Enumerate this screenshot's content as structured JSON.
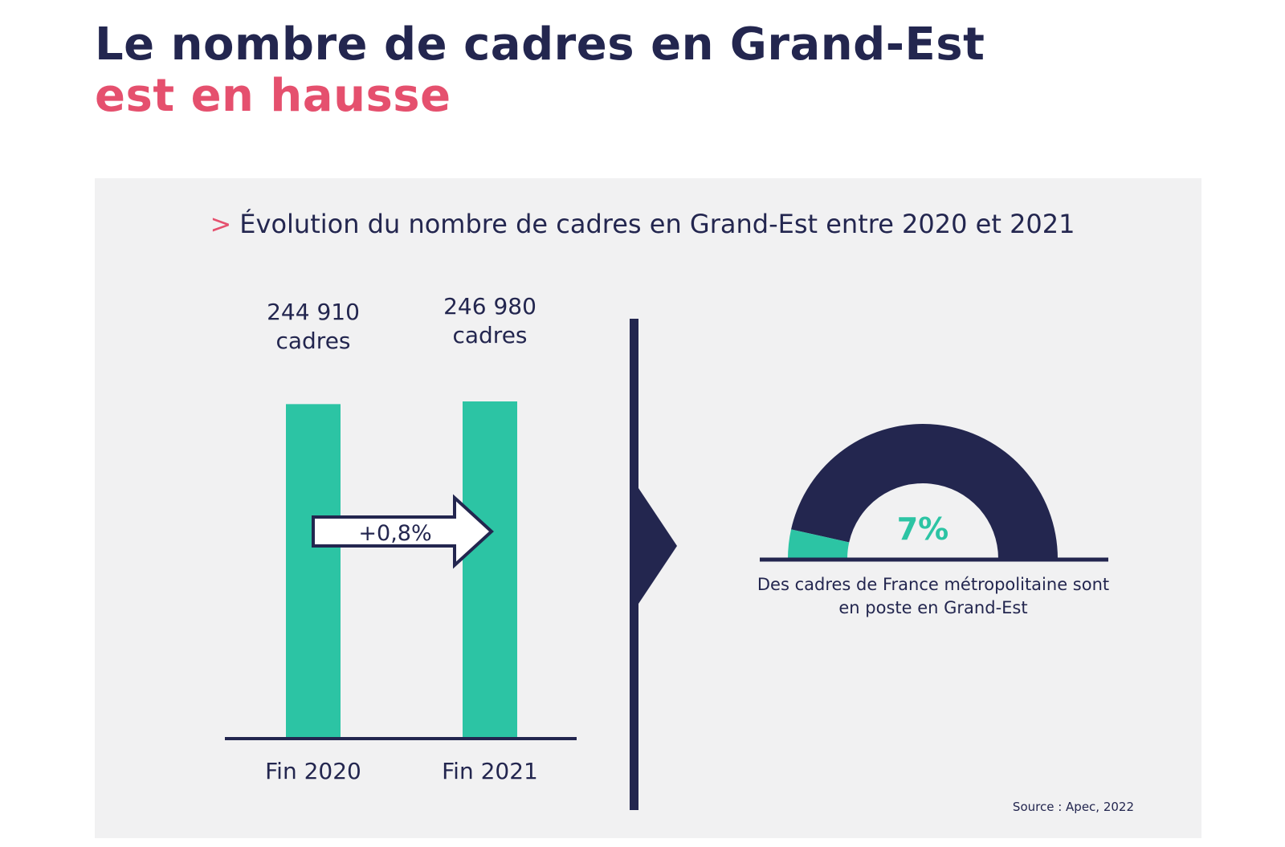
{
  "title": {
    "line1": "Le nombre de cadres en Grand-Est",
    "line2": "est en hausse"
  },
  "panel": {
    "chevron": ">",
    "subtitle": "Évolution du nombre de cadres en Grand-Est entre 2020 et 2021",
    "source": "Source : Apec, 2022"
  },
  "colors": {
    "navy": "#23264f",
    "pink": "#e5506e",
    "teal": "#2cc4a4",
    "panel": "#f1f1f2"
  },
  "chart_data": [
    {
      "type": "bar",
      "categories": [
        "Fin 2020",
        "Fin 2021"
      ],
      "values": [
        244910,
        246980
      ],
      "data_labels": [
        [
          "244 910",
          "cadres"
        ],
        [
          "246 980",
          "cadres"
        ]
      ],
      "annotation": "+0,8%"
    },
    {
      "type": "pie",
      "style": "half-donut",
      "value_percent": 7,
      "value_label": "7%",
      "caption": [
        "Des cadres de France métropolitaine sont",
        "en poste en Grand-Est"
      ]
    }
  ]
}
